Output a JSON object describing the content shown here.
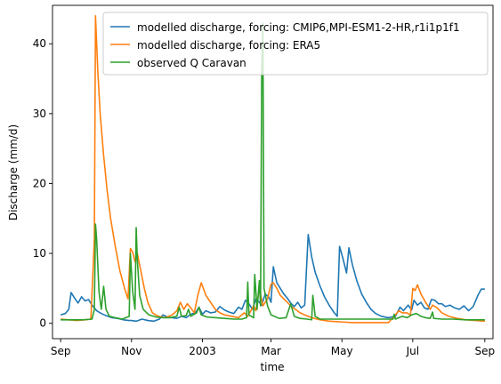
{
  "chart_data": {
    "type": "line",
    "title": "",
    "xlabel": "time",
    "ylabel": "Discharge (mm/d)",
    "xlim": [
      "2002-08-25",
      "2003-09-08"
    ],
    "ylim": [
      -2.2,
      45.5
    ],
    "x_ticks": [
      {
        "date": "2002-09-01",
        "label": "Sep"
      },
      {
        "date": "2002-11-01",
        "label": "Nov"
      },
      {
        "date": "2003-01-01",
        "label": "2003"
      },
      {
        "date": "2003-03-01",
        "label": "Mar"
      },
      {
        "date": "2003-05-01",
        "label": "May"
      },
      {
        "date": "2003-07-01",
        "label": "Jul"
      },
      {
        "date": "2003-09-01",
        "label": "Sep"
      }
    ],
    "y_ticks": [
      0,
      10,
      20,
      30,
      40
    ],
    "grid": false,
    "legend_position": "top-right",
    "series": [
      {
        "name": "modelled discharge, forcing: CMIP6,MPI-ESM1-2-HR,r1i1p1f1",
        "color": "#1f77b4",
        "points": [
          [
            "2002-09-01",
            1.2
          ],
          [
            "2002-09-05",
            1.4
          ],
          [
            "2002-09-08",
            2.0
          ],
          [
            "2002-09-10",
            4.4
          ],
          [
            "2002-09-13",
            3.6
          ],
          [
            "2002-09-16",
            2.9
          ],
          [
            "2002-09-19",
            3.8
          ],
          [
            "2002-09-22",
            3.2
          ],
          [
            "2002-09-25",
            3.4
          ],
          [
            "2002-09-28",
            2.6
          ],
          [
            "2002-10-02",
            1.8
          ],
          [
            "2002-10-06",
            1.4
          ],
          [
            "2002-10-10",
            1.1
          ],
          [
            "2002-10-15",
            0.8
          ],
          [
            "2002-10-20",
            0.7
          ],
          [
            "2002-10-25",
            0.5
          ],
          [
            "2002-10-30",
            0.4
          ],
          [
            "2002-11-01",
            0.4
          ],
          [
            "2002-11-05",
            0.3
          ],
          [
            "2002-11-10",
            0.6
          ],
          [
            "2002-11-15",
            0.4
          ],
          [
            "2002-11-20",
            0.3
          ],
          [
            "2002-11-25",
            0.6
          ],
          [
            "2002-11-28",
            1.2
          ],
          [
            "2002-12-02",
            0.9
          ],
          [
            "2002-12-06",
            0.8
          ],
          [
            "2002-12-10",
            0.7
          ],
          [
            "2002-12-14",
            1.0
          ],
          [
            "2002-12-18",
            0.8
          ],
          [
            "2002-12-22",
            1.3
          ],
          [
            "2002-12-26",
            1.5
          ],
          [
            "2002-12-29",
            2.3
          ],
          [
            "2003-01-01",
            1.3
          ],
          [
            "2003-01-04",
            1.8
          ],
          [
            "2003-01-08",
            1.5
          ],
          [
            "2003-01-12",
            1.6
          ],
          [
            "2003-01-16",
            2.4
          ],
          [
            "2003-01-20",
            1.9
          ],
          [
            "2003-01-24",
            1.6
          ],
          [
            "2003-01-28",
            1.4
          ],
          [
            "2003-02-01",
            2.3
          ],
          [
            "2003-02-04",
            2.0
          ],
          [
            "2003-02-07",
            3.3
          ],
          [
            "2003-02-10",
            2.8
          ],
          [
            "2003-02-13",
            2.0
          ],
          [
            "2003-02-16",
            3.5
          ],
          [
            "2003-02-19",
            3.0
          ],
          [
            "2003-02-21",
            2.6
          ],
          [
            "2003-02-24",
            4.2
          ],
          [
            "2003-02-27",
            3.8
          ],
          [
            "2003-03-01",
            3.0
          ],
          [
            "2003-03-03",
            8.1
          ],
          [
            "2003-03-06",
            5.8
          ],
          [
            "2003-03-09",
            5.0
          ],
          [
            "2003-03-12",
            4.2
          ],
          [
            "2003-03-15",
            3.6
          ],
          [
            "2003-03-18",
            2.9
          ],
          [
            "2003-03-21",
            2.4
          ],
          [
            "2003-03-24",
            3.0
          ],
          [
            "2003-03-27",
            2.2
          ],
          [
            "2003-03-30",
            2.6
          ],
          [
            "2003-04-02",
            12.7
          ],
          [
            "2003-04-05",
            9.5
          ],
          [
            "2003-04-08",
            7.3
          ],
          [
            "2003-04-12",
            5.4
          ],
          [
            "2003-04-16",
            3.8
          ],
          [
            "2003-04-20",
            2.6
          ],
          [
            "2003-04-24",
            1.6
          ],
          [
            "2003-04-27",
            1.0
          ],
          [
            "2003-04-29",
            11.0
          ],
          [
            "2003-05-02",
            9.2
          ],
          [
            "2003-05-05",
            7.2
          ],
          [
            "2003-05-07",
            10.8
          ],
          [
            "2003-05-10",
            8.4
          ],
          [
            "2003-05-14",
            6.0
          ],
          [
            "2003-05-18",
            4.2
          ],
          [
            "2003-05-22",
            3.0
          ],
          [
            "2003-05-26",
            2.0
          ],
          [
            "2003-05-30",
            1.4
          ],
          [
            "2003-06-04",
            1.0
          ],
          [
            "2003-06-10",
            0.8
          ],
          [
            "2003-06-16",
            1.0
          ],
          [
            "2003-06-20",
            2.3
          ],
          [
            "2003-06-23",
            1.8
          ],
          [
            "2003-06-27",
            2.6
          ],
          [
            "2003-06-30",
            1.9
          ],
          [
            "2003-07-02",
            3.3
          ],
          [
            "2003-07-05",
            2.6
          ],
          [
            "2003-07-08",
            3.0
          ],
          [
            "2003-07-11",
            2.2
          ],
          [
            "2003-07-14",
            2.0
          ],
          [
            "2003-07-17",
            3.4
          ],
          [
            "2003-07-20",
            3.3
          ],
          [
            "2003-07-23",
            2.8
          ],
          [
            "2003-07-26",
            2.8
          ],
          [
            "2003-07-29",
            2.4
          ],
          [
            "2003-08-02",
            2.6
          ],
          [
            "2003-08-06",
            2.2
          ],
          [
            "2003-08-10",
            2.0
          ],
          [
            "2003-08-14",
            2.5
          ],
          [
            "2003-08-18",
            1.8
          ],
          [
            "2003-08-22",
            2.4
          ],
          [
            "2003-08-26",
            4.0
          ],
          [
            "2003-08-29",
            4.9
          ],
          [
            "2003-09-01",
            4.9
          ]
        ]
      },
      {
        "name": "modelled discharge, forcing: ERA5",
        "color": "#ff7f0e",
        "points": [
          [
            "2002-09-01",
            0.6
          ],
          [
            "2002-09-08",
            0.5
          ],
          [
            "2002-09-15",
            0.4
          ],
          [
            "2002-09-22",
            0.5
          ],
          [
            "2002-09-27",
            0.6
          ],
          [
            "2002-09-30",
            12.0
          ],
          [
            "2002-10-01",
            44.0
          ],
          [
            "2002-10-03",
            36.0
          ],
          [
            "2002-10-05",
            30.0
          ],
          [
            "2002-10-08",
            24.0
          ],
          [
            "2002-10-11",
            19.0
          ],
          [
            "2002-10-14",
            15.0
          ],
          [
            "2002-10-18",
            11.0
          ],
          [
            "2002-10-22",
            7.5
          ],
          [
            "2002-10-26",
            5.0
          ],
          [
            "2002-10-29",
            3.5
          ],
          [
            "2002-10-31",
            10.7
          ],
          [
            "2002-11-02",
            10.2
          ],
          [
            "2002-11-04",
            8.8
          ],
          [
            "2002-11-06",
            10.0
          ],
          [
            "2002-11-09",
            7.5
          ],
          [
            "2002-11-12",
            5.0
          ],
          [
            "2002-11-15",
            3.0
          ],
          [
            "2002-11-19",
            1.5
          ],
          [
            "2002-11-24",
            1.0
          ],
          [
            "2002-11-30",
            0.8
          ],
          [
            "2002-12-06",
            1.2
          ],
          [
            "2002-12-10",
            1.8
          ],
          [
            "2002-12-13",
            3.0
          ],
          [
            "2002-12-16",
            2.0
          ],
          [
            "2002-12-19",
            2.8
          ],
          [
            "2002-12-22",
            2.2
          ],
          [
            "2002-12-25",
            1.5
          ],
          [
            "2002-12-28",
            4.0
          ],
          [
            "2002-12-31",
            5.8
          ],
          [
            "2003-01-04",
            4.0
          ],
          [
            "2003-01-08",
            3.0
          ],
          [
            "2003-01-12",
            2.0
          ],
          [
            "2003-01-16",
            1.5
          ],
          [
            "2003-01-20",
            1.2
          ],
          [
            "2003-01-26",
            1.0
          ],
          [
            "2003-02-01",
            0.8
          ],
          [
            "2003-02-06",
            1.5
          ],
          [
            "2003-02-09",
            1.0
          ],
          [
            "2003-02-14",
            2.5
          ],
          [
            "2003-02-16",
            1.8
          ],
          [
            "2003-02-19",
            5.0
          ],
          [
            "2003-02-22",
            2.5
          ],
          [
            "2003-02-26",
            3.5
          ],
          [
            "2003-03-01",
            5.6
          ],
          [
            "2003-03-03",
            5.8
          ],
          [
            "2003-03-06",
            5.0
          ],
          [
            "2003-03-09",
            4.0
          ],
          [
            "2003-03-12",
            3.5
          ],
          [
            "2003-03-15",
            3.0
          ],
          [
            "2003-03-18",
            2.5
          ],
          [
            "2003-03-22",
            2.0
          ],
          [
            "2003-03-26",
            1.5
          ],
          [
            "2003-03-30",
            1.2
          ],
          [
            "2003-04-05",
            0.8
          ],
          [
            "2003-04-12",
            0.5
          ],
          [
            "2003-04-20",
            0.3
          ],
          [
            "2003-04-30",
            0.2
          ],
          [
            "2003-05-10",
            0.1
          ],
          [
            "2003-05-20",
            0.1
          ],
          [
            "2003-06-01",
            0.1
          ],
          [
            "2003-06-10",
            0.1
          ],
          [
            "2003-06-16",
            1.2
          ],
          [
            "2003-06-19",
            1.8
          ],
          [
            "2003-06-22",
            1.5
          ],
          [
            "2003-06-26",
            1.5
          ],
          [
            "2003-06-29",
            1.2
          ],
          [
            "2003-07-01",
            5.0
          ],
          [
            "2003-07-03",
            4.7
          ],
          [
            "2003-07-05",
            5.5
          ],
          [
            "2003-07-08",
            4.2
          ],
          [
            "2003-07-12",
            3.0
          ],
          [
            "2003-07-16",
            2.0
          ],
          [
            "2003-07-18",
            2.6
          ],
          [
            "2003-07-22",
            2.2
          ],
          [
            "2003-07-26",
            1.5
          ],
          [
            "2003-08-01",
            1.0
          ],
          [
            "2003-08-08",
            0.7
          ],
          [
            "2003-08-16",
            0.5
          ],
          [
            "2003-08-24",
            0.4
          ],
          [
            "2003-09-01",
            0.3
          ]
        ]
      },
      {
        "name": "observed Q Caravan",
        "color": "#2ca02c",
        "points": [
          [
            "2002-09-01",
            0.5
          ],
          [
            "2002-09-10",
            0.5
          ],
          [
            "2002-09-20",
            0.5
          ],
          [
            "2002-09-28",
            0.6
          ],
          [
            "2002-09-30",
            2.0
          ],
          [
            "2002-10-01",
            14.2
          ],
          [
            "2002-10-02",
            12.0
          ],
          [
            "2002-10-04",
            4.5
          ],
          [
            "2002-10-06",
            2.0
          ],
          [
            "2002-10-08",
            5.3
          ],
          [
            "2002-10-10",
            2.0
          ],
          [
            "2002-10-13",
            1.0
          ],
          [
            "2002-10-18",
            0.8
          ],
          [
            "2002-10-24",
            0.6
          ],
          [
            "2002-10-30",
            1.0
          ],
          [
            "2002-10-31",
            10.0
          ],
          [
            "2002-11-02",
            4.5
          ],
          [
            "2002-11-04",
            2.0
          ],
          [
            "2002-11-05",
            13.7
          ],
          [
            "2002-11-06",
            9.0
          ],
          [
            "2002-11-08",
            4.0
          ],
          [
            "2002-11-11",
            2.0
          ],
          [
            "2002-11-16",
            1.2
          ],
          [
            "2002-11-22",
            0.9
          ],
          [
            "2002-11-28",
            0.8
          ],
          [
            "2002-12-04",
            0.8
          ],
          [
            "2002-12-10",
            1.0
          ],
          [
            "2002-12-12",
            2.3
          ],
          [
            "2002-12-14",
            1.0
          ],
          [
            "2002-12-18",
            1.1
          ],
          [
            "2002-12-20",
            2.0
          ],
          [
            "2002-12-22",
            1.0
          ],
          [
            "2002-12-27",
            1.5
          ],
          [
            "2002-12-29",
            2.3
          ],
          [
            "2002-12-31",
            1.2
          ],
          [
            "2003-01-05",
            0.9
          ],
          [
            "2003-01-12",
            0.8
          ],
          [
            "2003-01-20",
            0.7
          ],
          [
            "2003-01-28",
            0.6
          ],
          [
            "2003-02-04",
            0.6
          ],
          [
            "2003-02-08",
            0.8
          ],
          [
            "2003-02-09",
            5.9
          ],
          [
            "2003-02-10",
            1.2
          ],
          [
            "2003-02-14",
            0.8
          ],
          [
            "2003-02-15",
            7.0
          ],
          [
            "2003-02-17",
            2.0
          ],
          [
            "2003-02-19",
            6.1
          ],
          [
            "2003-02-20",
            2.5
          ],
          [
            "2003-02-21",
            36.0
          ],
          [
            "2003-02-22",
            43.0
          ],
          [
            "2003-02-23",
            5.0
          ],
          [
            "2003-02-26",
            2.5
          ],
          [
            "2003-03-01",
            1.2
          ],
          [
            "2003-03-08",
            0.7
          ],
          [
            "2003-03-14",
            0.8
          ],
          [
            "2003-03-18",
            2.8
          ],
          [
            "2003-03-21",
            1.0
          ],
          [
            "2003-03-26",
            0.7
          ],
          [
            "2003-04-01",
            0.6
          ],
          [
            "2003-04-05",
            0.5
          ],
          [
            "2003-04-06",
            4.0
          ],
          [
            "2003-04-08",
            1.0
          ],
          [
            "2003-04-12",
            0.6
          ],
          [
            "2003-04-22",
            0.6
          ],
          [
            "2003-05-02",
            0.6
          ],
          [
            "2003-05-15",
            0.6
          ],
          [
            "2003-05-30",
            0.6
          ],
          [
            "2003-06-10",
            0.6
          ],
          [
            "2003-06-14",
            0.6
          ],
          [
            "2003-06-15",
            1.3
          ],
          [
            "2003-06-16",
            0.6
          ],
          [
            "2003-06-22",
            1.0
          ],
          [
            "2003-06-26",
            0.8
          ],
          [
            "2003-06-30",
            1.2
          ],
          [
            "2003-07-04",
            1.4
          ],
          [
            "2003-07-08",
            1.0
          ],
          [
            "2003-07-12",
            0.8
          ],
          [
            "2003-07-16",
            0.7
          ],
          [
            "2003-07-18",
            1.6
          ],
          [
            "2003-07-19",
            0.7
          ],
          [
            "2003-07-26",
            0.6
          ],
          [
            "2003-08-05",
            0.6
          ],
          [
            "2003-08-15",
            0.5
          ],
          [
            "2003-08-25",
            0.5
          ],
          [
            "2003-09-01",
            0.5
          ]
        ]
      }
    ]
  }
}
